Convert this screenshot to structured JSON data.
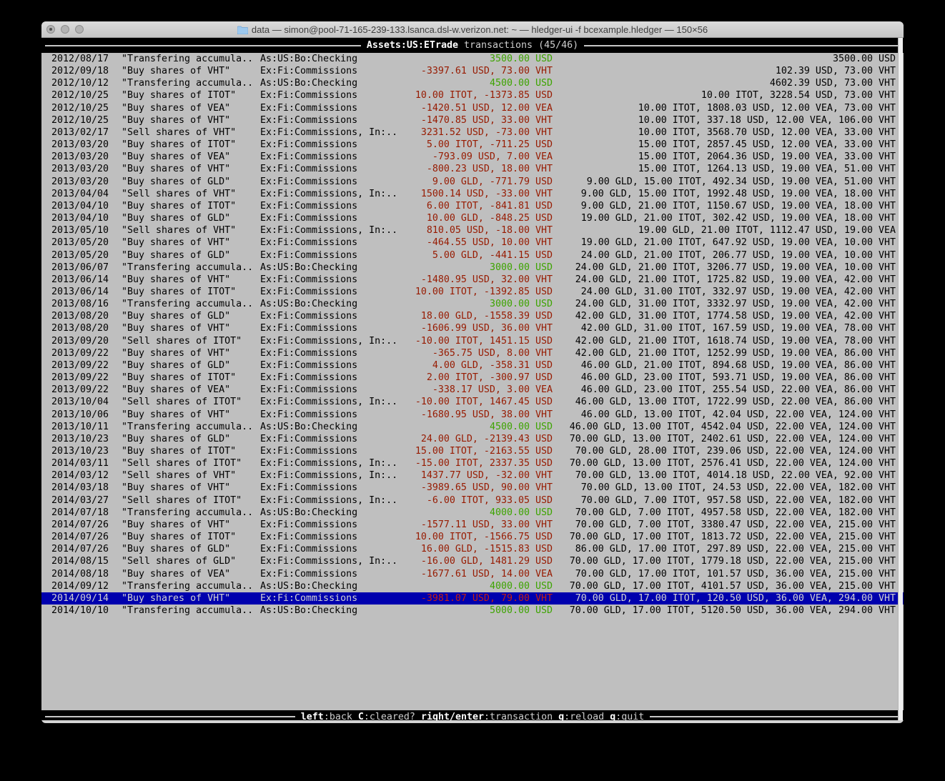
{
  "window": {
    "title": "data — simon@pool-71-165-239-133.lsanca.dsl-w.verizon.net: ~ — hledger-ui -f bcexample.hledger — 150×56"
  },
  "header": {
    "account": "Assets:US:ETrade",
    "mode": "transactions",
    "position": "(45/46)"
  },
  "register": {
    "selected_index": 44,
    "rows": [
      {
        "date": "2012/08/17",
        "description": "\"Transfering accumula..",
        "account": "As:US:Bo:Checking",
        "amount": "3500.00 USD",
        "amount_color": "green",
        "balance": "3500.00 USD"
      },
      {
        "date": "2012/09/18",
        "description": "\"Buy shares of VHT\"",
        "account": "Ex:Fi:Commissions",
        "amount": "-3397.61 USD, 73.00 VHT",
        "amount_color": "red",
        "balance": "102.39 USD, 73.00 VHT"
      },
      {
        "date": "2012/10/12",
        "description": "\"Transfering accumula..",
        "account": "As:US:Bo:Checking",
        "amount": "4500.00 USD",
        "amount_color": "green",
        "balance": "4602.39 USD, 73.00 VHT"
      },
      {
        "date": "2012/10/25",
        "description": "\"Buy shares of ITOT\"",
        "account": "Ex:Fi:Commissions",
        "amount": "10.00 ITOT, -1373.85 USD",
        "amount_color": "red",
        "balance": "10.00 ITOT, 3228.54 USD, 73.00 VHT"
      },
      {
        "date": "2012/10/25",
        "description": "\"Buy shares of VEA\"",
        "account": "Ex:Fi:Commissions",
        "amount": "-1420.51 USD, 12.00 VEA",
        "amount_color": "red",
        "balance": "10.00 ITOT, 1808.03 USD, 12.00 VEA, 73.00 VHT"
      },
      {
        "date": "2012/10/25",
        "description": "\"Buy shares of VHT\"",
        "account": "Ex:Fi:Commissions",
        "amount": "-1470.85 USD, 33.00 VHT",
        "amount_color": "red",
        "balance": "10.00 ITOT, 337.18 USD, 12.00 VEA, 106.00 VHT"
      },
      {
        "date": "2013/02/17",
        "description": "\"Sell shares of VHT\"",
        "account": "Ex:Fi:Commissions, In:..",
        "amount": "3231.52 USD, -73.00 VHT",
        "amount_color": "red",
        "balance": "10.00 ITOT, 3568.70 USD, 12.00 VEA, 33.00 VHT"
      },
      {
        "date": "2013/03/20",
        "description": "\"Buy shares of ITOT\"",
        "account": "Ex:Fi:Commissions",
        "amount": "5.00 ITOT, -711.25 USD",
        "amount_color": "red",
        "balance": "15.00 ITOT, 2857.45 USD, 12.00 VEA, 33.00 VHT"
      },
      {
        "date": "2013/03/20",
        "description": "\"Buy shares of VEA\"",
        "account": "Ex:Fi:Commissions",
        "amount": "-793.09 USD, 7.00 VEA",
        "amount_color": "red",
        "balance": "15.00 ITOT, 2064.36 USD, 19.00 VEA, 33.00 VHT"
      },
      {
        "date": "2013/03/20",
        "description": "\"Buy shares of VHT\"",
        "account": "Ex:Fi:Commissions",
        "amount": "-800.23 USD, 18.00 VHT",
        "amount_color": "red",
        "balance": "15.00 ITOT, 1264.13 USD, 19.00 VEA, 51.00 VHT"
      },
      {
        "date": "2013/03/20",
        "description": "\"Buy shares of GLD\"",
        "account": "Ex:Fi:Commissions",
        "amount": "9.00 GLD, -771.79 USD",
        "amount_color": "red",
        "balance": "9.00 GLD, 15.00 ITOT, 492.34 USD, 19.00 VEA, 51.00 VHT"
      },
      {
        "date": "2013/04/04",
        "description": "\"Sell shares of VHT\"",
        "account": "Ex:Fi:Commissions, In:..",
        "amount": "1500.14 USD, -33.00 VHT",
        "amount_color": "red",
        "balance": "9.00 GLD, 15.00 ITOT, 1992.48 USD, 19.00 VEA, 18.00 VHT"
      },
      {
        "date": "2013/04/10",
        "description": "\"Buy shares of ITOT\"",
        "account": "Ex:Fi:Commissions",
        "amount": "6.00 ITOT, -841.81 USD",
        "amount_color": "red",
        "balance": "9.00 GLD, 21.00 ITOT, 1150.67 USD, 19.00 VEA, 18.00 VHT"
      },
      {
        "date": "2013/04/10",
        "description": "\"Buy shares of GLD\"",
        "account": "Ex:Fi:Commissions",
        "amount": "10.00 GLD, -848.25 USD",
        "amount_color": "red",
        "balance": "19.00 GLD, 21.00 ITOT, 302.42 USD, 19.00 VEA, 18.00 VHT"
      },
      {
        "date": "2013/05/10",
        "description": "\"Sell shares of VHT\"",
        "account": "Ex:Fi:Commissions, In:..",
        "amount": "810.05 USD, -18.00 VHT",
        "amount_color": "red",
        "balance": "19.00 GLD, 21.00 ITOT, 1112.47 USD, 19.00 VEA"
      },
      {
        "date": "2013/05/20",
        "description": "\"Buy shares of VHT\"",
        "account": "Ex:Fi:Commissions",
        "amount": "-464.55 USD, 10.00 VHT",
        "amount_color": "red",
        "balance": "19.00 GLD, 21.00 ITOT, 647.92 USD, 19.00 VEA, 10.00 VHT"
      },
      {
        "date": "2013/05/20",
        "description": "\"Buy shares of GLD\"",
        "account": "Ex:Fi:Commissions",
        "amount": "5.00 GLD, -441.15 USD",
        "amount_color": "red",
        "balance": "24.00 GLD, 21.00 ITOT, 206.77 USD, 19.00 VEA, 10.00 VHT"
      },
      {
        "date": "2013/06/07",
        "description": "\"Transfering accumula..",
        "account": "As:US:Bo:Checking",
        "amount": "3000.00 USD",
        "amount_color": "green",
        "balance": "24.00 GLD, 21.00 ITOT, 3206.77 USD, 19.00 VEA, 10.00 VHT"
      },
      {
        "date": "2013/06/14",
        "description": "\"Buy shares of VHT\"",
        "account": "Ex:Fi:Commissions",
        "amount": "-1480.95 USD, 32.00 VHT",
        "amount_color": "red",
        "balance": "24.00 GLD, 21.00 ITOT, 1725.82 USD, 19.00 VEA, 42.00 VHT"
      },
      {
        "date": "2013/06/14",
        "description": "\"Buy shares of ITOT\"",
        "account": "Ex:Fi:Commissions",
        "amount": "10.00 ITOT, -1392.85 USD",
        "amount_color": "red",
        "balance": "24.00 GLD, 31.00 ITOT, 332.97 USD, 19.00 VEA, 42.00 VHT"
      },
      {
        "date": "2013/08/16",
        "description": "\"Transfering accumula..",
        "account": "As:US:Bo:Checking",
        "amount": "3000.00 USD",
        "amount_color": "green",
        "balance": "24.00 GLD, 31.00 ITOT, 3332.97 USD, 19.00 VEA, 42.00 VHT"
      },
      {
        "date": "2013/08/20",
        "description": "\"Buy shares of GLD\"",
        "account": "Ex:Fi:Commissions",
        "amount": "18.00 GLD, -1558.39 USD",
        "amount_color": "red",
        "balance": "42.00 GLD, 31.00 ITOT, 1774.58 USD, 19.00 VEA, 42.00 VHT"
      },
      {
        "date": "2013/08/20",
        "description": "\"Buy shares of VHT\"",
        "account": "Ex:Fi:Commissions",
        "amount": "-1606.99 USD, 36.00 VHT",
        "amount_color": "red",
        "balance": "42.00 GLD, 31.00 ITOT, 167.59 USD, 19.00 VEA, 78.00 VHT"
      },
      {
        "date": "2013/09/20",
        "description": "\"Sell shares of ITOT\"",
        "account": "Ex:Fi:Commissions, In:..",
        "amount": "-10.00 ITOT, 1451.15 USD",
        "amount_color": "red",
        "balance": "42.00 GLD, 21.00 ITOT, 1618.74 USD, 19.00 VEA, 78.00 VHT"
      },
      {
        "date": "2013/09/22",
        "description": "\"Buy shares of VHT\"",
        "account": "Ex:Fi:Commissions",
        "amount": "-365.75 USD, 8.00 VHT",
        "amount_color": "red",
        "balance": "42.00 GLD, 21.00 ITOT, 1252.99 USD, 19.00 VEA, 86.00 VHT"
      },
      {
        "date": "2013/09/22",
        "description": "\"Buy shares of GLD\"",
        "account": "Ex:Fi:Commissions",
        "amount": "4.00 GLD, -358.31 USD",
        "amount_color": "red",
        "balance": "46.00 GLD, 21.00 ITOT, 894.68 USD, 19.00 VEA, 86.00 VHT"
      },
      {
        "date": "2013/09/22",
        "description": "\"Buy shares of ITOT\"",
        "account": "Ex:Fi:Commissions",
        "amount": "2.00 ITOT, -300.97 USD",
        "amount_color": "red",
        "balance": "46.00 GLD, 23.00 ITOT, 593.71 USD, 19.00 VEA, 86.00 VHT"
      },
      {
        "date": "2013/09/22",
        "description": "\"Buy shares of VEA\"",
        "account": "Ex:Fi:Commissions",
        "amount": "-338.17 USD, 3.00 VEA",
        "amount_color": "red",
        "balance": "46.00 GLD, 23.00 ITOT, 255.54 USD, 22.00 VEA, 86.00 VHT"
      },
      {
        "date": "2013/10/04",
        "description": "\"Sell shares of ITOT\"",
        "account": "Ex:Fi:Commissions, In:..",
        "amount": "-10.00 ITOT, 1467.45 USD",
        "amount_color": "red",
        "balance": "46.00 GLD, 13.00 ITOT, 1722.99 USD, 22.00 VEA, 86.00 VHT"
      },
      {
        "date": "2013/10/06",
        "description": "\"Buy shares of VHT\"",
        "account": "Ex:Fi:Commissions",
        "amount": "-1680.95 USD, 38.00 VHT",
        "amount_color": "red",
        "balance": "46.00 GLD, 13.00 ITOT, 42.04 USD, 22.00 VEA, 124.00 VHT"
      },
      {
        "date": "2013/10/11",
        "description": "\"Transfering accumula..",
        "account": "As:US:Bo:Checking",
        "amount": "4500.00 USD",
        "amount_color": "green",
        "balance": "46.00 GLD, 13.00 ITOT, 4542.04 USD, 22.00 VEA, 124.00 VHT"
      },
      {
        "date": "2013/10/23",
        "description": "\"Buy shares of GLD\"",
        "account": "Ex:Fi:Commissions",
        "amount": "24.00 GLD, -2139.43 USD",
        "amount_color": "red",
        "balance": "70.00 GLD, 13.00 ITOT, 2402.61 USD, 22.00 VEA, 124.00 VHT"
      },
      {
        "date": "2013/10/23",
        "description": "\"Buy shares of ITOT\"",
        "account": "Ex:Fi:Commissions",
        "amount": "15.00 ITOT, -2163.55 USD",
        "amount_color": "red",
        "balance": "70.00 GLD, 28.00 ITOT, 239.06 USD, 22.00 VEA, 124.00 VHT"
      },
      {
        "date": "2014/03/11",
        "description": "\"Sell shares of ITOT\"",
        "account": "Ex:Fi:Commissions, In:..",
        "amount": "-15.00 ITOT, 2337.35 USD",
        "amount_color": "red",
        "balance": "70.00 GLD, 13.00 ITOT, 2576.41 USD, 22.00 VEA, 124.00 VHT"
      },
      {
        "date": "2014/03/12",
        "description": "\"Sell shares of VHT\"",
        "account": "Ex:Fi:Commissions, In:..",
        "amount": "1437.77 USD, -32.00 VHT",
        "amount_color": "red",
        "balance": "70.00 GLD, 13.00 ITOT, 4014.18 USD, 22.00 VEA, 92.00 VHT"
      },
      {
        "date": "2014/03/18",
        "description": "\"Buy shares of VHT\"",
        "account": "Ex:Fi:Commissions",
        "amount": "-3989.65 USD, 90.00 VHT",
        "amount_color": "red",
        "balance": "70.00 GLD, 13.00 ITOT, 24.53 USD, 22.00 VEA, 182.00 VHT"
      },
      {
        "date": "2014/03/27",
        "description": "\"Sell shares of ITOT\"",
        "account": "Ex:Fi:Commissions, In:..",
        "amount": "-6.00 ITOT, 933.05 USD",
        "amount_color": "red",
        "balance": "70.00 GLD, 7.00 ITOT, 957.58 USD, 22.00 VEA, 182.00 VHT"
      },
      {
        "date": "2014/07/18",
        "description": "\"Transfering accumula..",
        "account": "As:US:Bo:Checking",
        "amount": "4000.00 USD",
        "amount_color": "green",
        "balance": "70.00 GLD, 7.00 ITOT, 4957.58 USD, 22.00 VEA, 182.00 VHT"
      },
      {
        "date": "2014/07/26",
        "description": "\"Buy shares of VHT\"",
        "account": "Ex:Fi:Commissions",
        "amount": "-1577.11 USD, 33.00 VHT",
        "amount_color": "red",
        "balance": "70.00 GLD, 7.00 ITOT, 3380.47 USD, 22.00 VEA, 215.00 VHT"
      },
      {
        "date": "2014/07/26",
        "description": "\"Buy shares of ITOT\"",
        "account": "Ex:Fi:Commissions",
        "amount": "10.00 ITOT, -1566.75 USD",
        "amount_color": "red",
        "balance": "70.00 GLD, 17.00 ITOT, 1813.72 USD, 22.00 VEA, 215.00 VHT"
      },
      {
        "date": "2014/07/26",
        "description": "\"Buy shares of GLD\"",
        "account": "Ex:Fi:Commissions",
        "amount": "16.00 GLD, -1515.83 USD",
        "amount_color": "red",
        "balance": "86.00 GLD, 17.00 ITOT, 297.89 USD, 22.00 VEA, 215.00 VHT"
      },
      {
        "date": "2014/08/15",
        "description": "\"Sell shares of GLD\"",
        "account": "Ex:Fi:Commissions, In:..",
        "amount": "-16.00 GLD, 1481.29 USD",
        "amount_color": "red",
        "balance": "70.00 GLD, 17.00 ITOT, 1779.18 USD, 22.00 VEA, 215.00 VHT"
      },
      {
        "date": "2014/08/18",
        "description": "\"Buy shares of VEA\"",
        "account": "Ex:Fi:Commissions",
        "amount": "-1677.61 USD, 14.00 VEA",
        "amount_color": "red",
        "balance": "70.00 GLD, 17.00 ITOT, 101.57 USD, 36.00 VEA, 215.00 VHT"
      },
      {
        "date": "2014/09/12",
        "description": "\"Transfering accumula..",
        "account": "As:US:Bo:Checking",
        "amount": "4000.00 USD",
        "amount_color": "green",
        "balance": "70.00 GLD, 17.00 ITOT, 4101.57 USD, 36.00 VEA, 215.00 VHT"
      },
      {
        "date": "2014/09/14",
        "description": "\"Buy shares of VHT\"",
        "account": "Ex:Fi:Commissions",
        "amount": "-3981.07 USD, 79.00 VHT",
        "amount_color": "red",
        "balance": "70.00 GLD, 17.00 ITOT, 120.50 USD, 36.00 VEA, 294.00 VHT"
      },
      {
        "date": "2014/10/10",
        "description": "\"Transfering accumula..",
        "account": "As:US:Bo:Checking",
        "amount": "5000.00 USD",
        "amount_color": "green",
        "balance": "70.00 GLD, 17.00 ITOT, 5120.50 USD, 36.00 VEA, 294.00 VHT"
      }
    ]
  },
  "statusbar": {
    "hints": [
      {
        "key": "left",
        "label": ":back"
      },
      {
        "key": "C",
        "label": ":cleared?"
      },
      {
        "key": "right/enter",
        "label": ":transaction"
      },
      {
        "key": "g",
        "label": ":reload"
      },
      {
        "key": "q",
        "label": ":quit"
      }
    ]
  },
  "colors": {
    "terminal_bg": "#bfbfbf",
    "amount_red": "#971a00",
    "amount_green": "#3da400",
    "selection_bg": "#0000ae",
    "selection_red": "#c41f12",
    "bar_bg": "#000000"
  }
}
